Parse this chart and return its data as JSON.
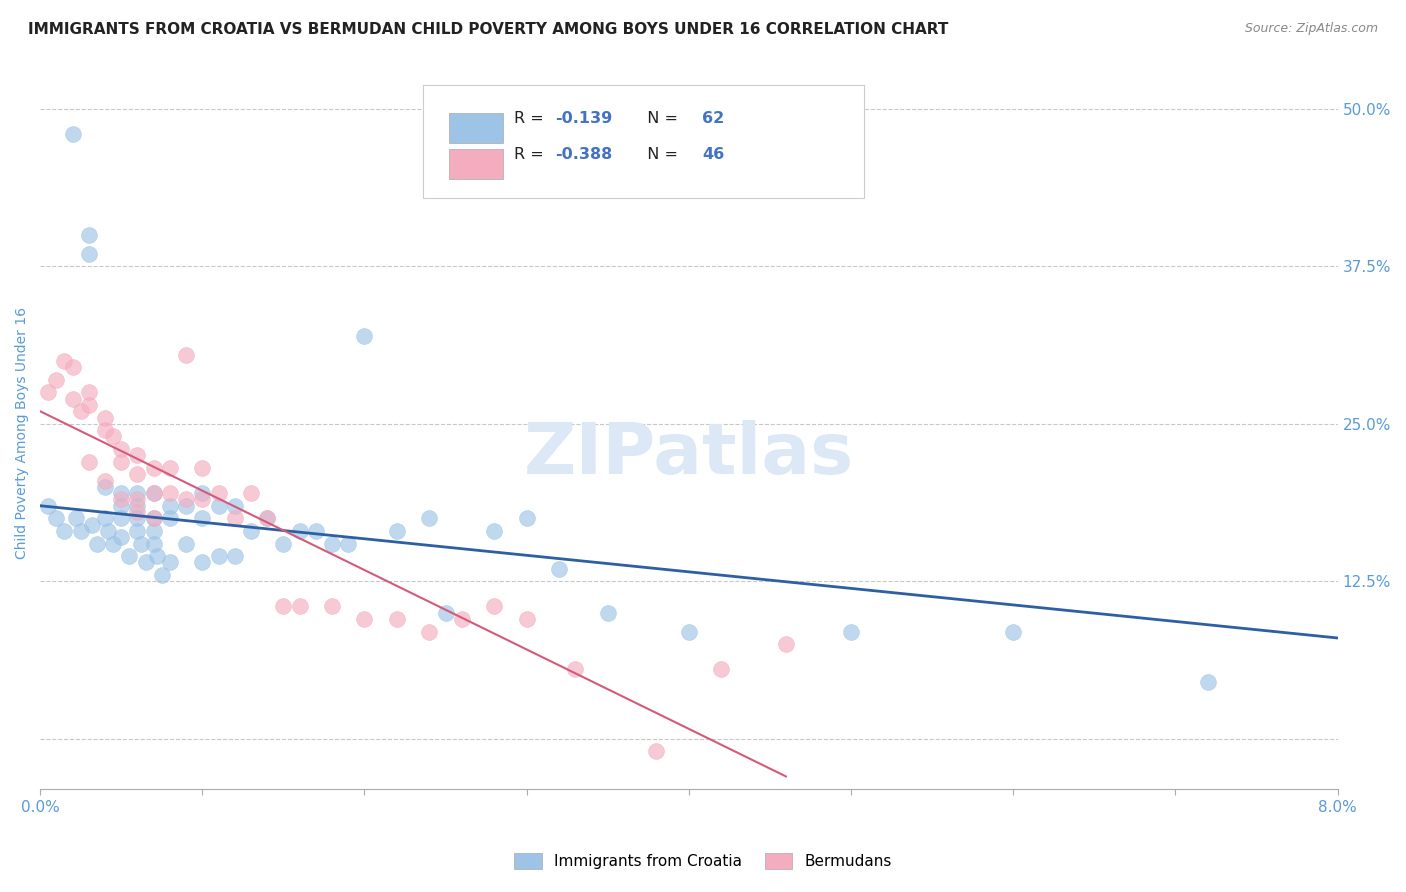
{
  "title": "IMMIGRANTS FROM CROATIA VS BERMUDAN CHILD POVERTY AMONG BOYS UNDER 16 CORRELATION CHART",
  "source": "Source: ZipAtlas.com",
  "ylabel": "Child Poverty Among Boys Under 16",
  "right_yticks": [
    0.0,
    0.125,
    0.25,
    0.375,
    0.5
  ],
  "right_yticklabels": [
    "",
    "12.5%",
    "25.0%",
    "37.5%",
    "50.0%"
  ],
  "watermark": "ZIPatlas",
  "legend_label1": "Immigrants from Croatia",
  "legend_label2": "Bermudans",
  "blue_color": "#9dc3e6",
  "pink_color": "#f4acbf",
  "blue_line_color": "#2e5fa3",
  "pink_line_color": "#d45a7a",
  "xmin": 0.0,
  "xmax": 0.08,
  "ymin": -0.04,
  "ymax": 0.525,
  "blue_scatter_x": [
    0.0005,
    0.001,
    0.0015,
    0.002,
    0.0022,
    0.0025,
    0.003,
    0.003,
    0.0032,
    0.0035,
    0.004,
    0.004,
    0.0042,
    0.0045,
    0.005,
    0.005,
    0.005,
    0.005,
    0.0055,
    0.006,
    0.006,
    0.006,
    0.006,
    0.0062,
    0.0065,
    0.007,
    0.007,
    0.007,
    0.007,
    0.0072,
    0.0075,
    0.008,
    0.008,
    0.008,
    0.009,
    0.009,
    0.01,
    0.01,
    0.01,
    0.011,
    0.011,
    0.012,
    0.012,
    0.013,
    0.014,
    0.015,
    0.016,
    0.017,
    0.018,
    0.019,
    0.02,
    0.022,
    0.024,
    0.025,
    0.028,
    0.03,
    0.032,
    0.035,
    0.04,
    0.05,
    0.06,
    0.072
  ],
  "blue_scatter_y": [
    0.185,
    0.175,
    0.165,
    0.48,
    0.175,
    0.165,
    0.4,
    0.385,
    0.17,
    0.155,
    0.2,
    0.175,
    0.165,
    0.155,
    0.195,
    0.185,
    0.175,
    0.16,
    0.145,
    0.195,
    0.185,
    0.175,
    0.165,
    0.155,
    0.14,
    0.195,
    0.175,
    0.165,
    0.155,
    0.145,
    0.13,
    0.185,
    0.175,
    0.14,
    0.185,
    0.155,
    0.195,
    0.175,
    0.14,
    0.185,
    0.145,
    0.185,
    0.145,
    0.165,
    0.175,
    0.155,
    0.165,
    0.165,
    0.155,
    0.155,
    0.32,
    0.165,
    0.175,
    0.1,
    0.165,
    0.175,
    0.135,
    0.1,
    0.085,
    0.085,
    0.085,
    0.045
  ],
  "pink_scatter_x": [
    0.0005,
    0.001,
    0.0015,
    0.002,
    0.002,
    0.0025,
    0.003,
    0.003,
    0.003,
    0.004,
    0.004,
    0.004,
    0.0045,
    0.005,
    0.005,
    0.005,
    0.006,
    0.006,
    0.006,
    0.006,
    0.007,
    0.007,
    0.007,
    0.008,
    0.008,
    0.009,
    0.009,
    0.01,
    0.01,
    0.011,
    0.012,
    0.013,
    0.014,
    0.015,
    0.016,
    0.018,
    0.02,
    0.022,
    0.024,
    0.026,
    0.028,
    0.03,
    0.033,
    0.038,
    0.042,
    0.046
  ],
  "pink_scatter_y": [
    0.275,
    0.285,
    0.3,
    0.295,
    0.27,
    0.26,
    0.275,
    0.265,
    0.22,
    0.255,
    0.245,
    0.205,
    0.24,
    0.23,
    0.22,
    0.19,
    0.225,
    0.21,
    0.19,
    0.18,
    0.215,
    0.195,
    0.175,
    0.215,
    0.195,
    0.305,
    0.19,
    0.215,
    0.19,
    0.195,
    0.175,
    0.195,
    0.175,
    0.105,
    0.105,
    0.105,
    0.095,
    0.095,
    0.085,
    0.095,
    0.105,
    0.095,
    0.055,
    -0.01,
    0.055,
    0.075
  ],
  "blue_line_x": [
    0.0,
    0.08
  ],
  "blue_line_y": [
    0.185,
    0.08
  ],
  "pink_line_x": [
    0.0,
    0.046
  ],
  "pink_line_y": [
    0.26,
    -0.03
  ],
  "title_fontsize": 11,
  "source_fontsize": 9,
  "label_fontsize": 10,
  "tick_fontsize": 11,
  "watermark_fontsize": 52,
  "watermark_color": "#dce8f5",
  "background_color": "#ffffff",
  "grid_color": "#c8c8c8",
  "title_color": "#222222",
  "source_color": "#888888",
  "axis_label_color": "#5b9bd5",
  "tick_color": "#5b9bd5",
  "legend_text_dark": "#222222",
  "legend_text_blue": "#4472c4"
}
